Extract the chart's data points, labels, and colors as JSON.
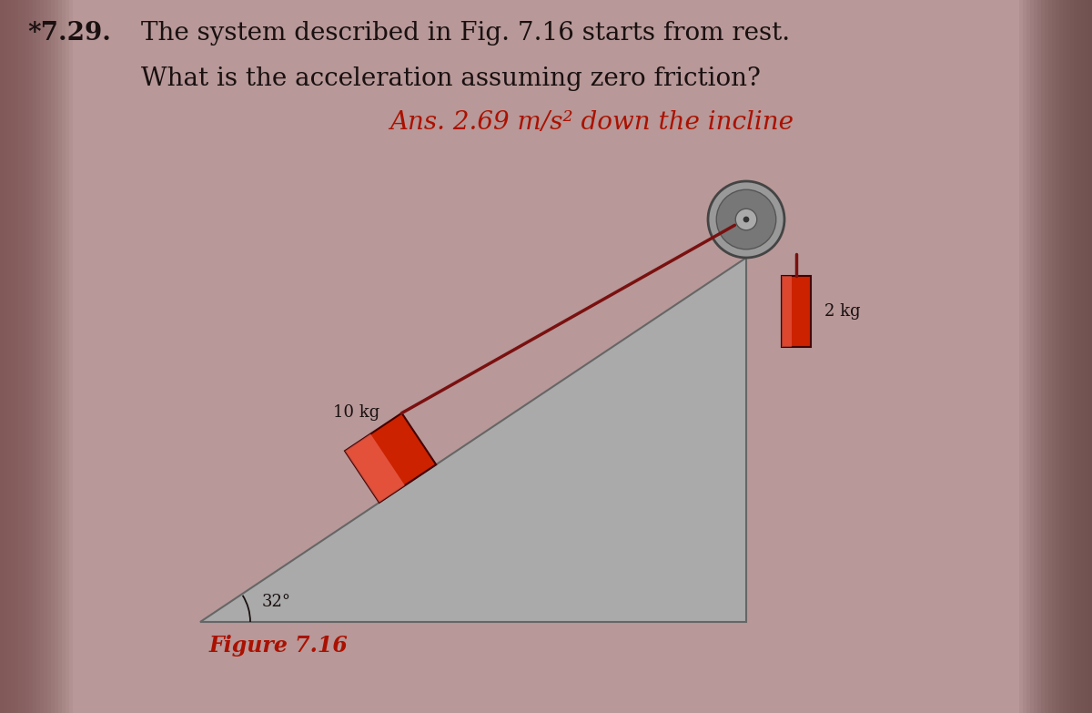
{
  "background_color": "#b89898",
  "problem_number": "*7.29.",
  "problem_text_line1": "The system described in Fig. 7.16 starts from rest.",
  "problem_text_line2": "What is the acceleration assuming zero friction?",
  "answer_text": "Ans. 2.69 m/s² down the incline",
  "figure_label": "Figure 7.16",
  "angle_label": "32°",
  "mass1_label": "10 kg",
  "mass2_label": "2 kg",
  "text_color": "#1a1010",
  "answer_color": "#aa1100",
  "figure_label_color": "#aa1100",
  "incline_color": "#aaaaaa",
  "block_red": "#cc2200",
  "block_light": "#ee6655",
  "rope_color": "#7a1010",
  "pulley_outer": "#999999",
  "pulley_inner": "#bbbbbb",
  "t_block": 0.38
}
